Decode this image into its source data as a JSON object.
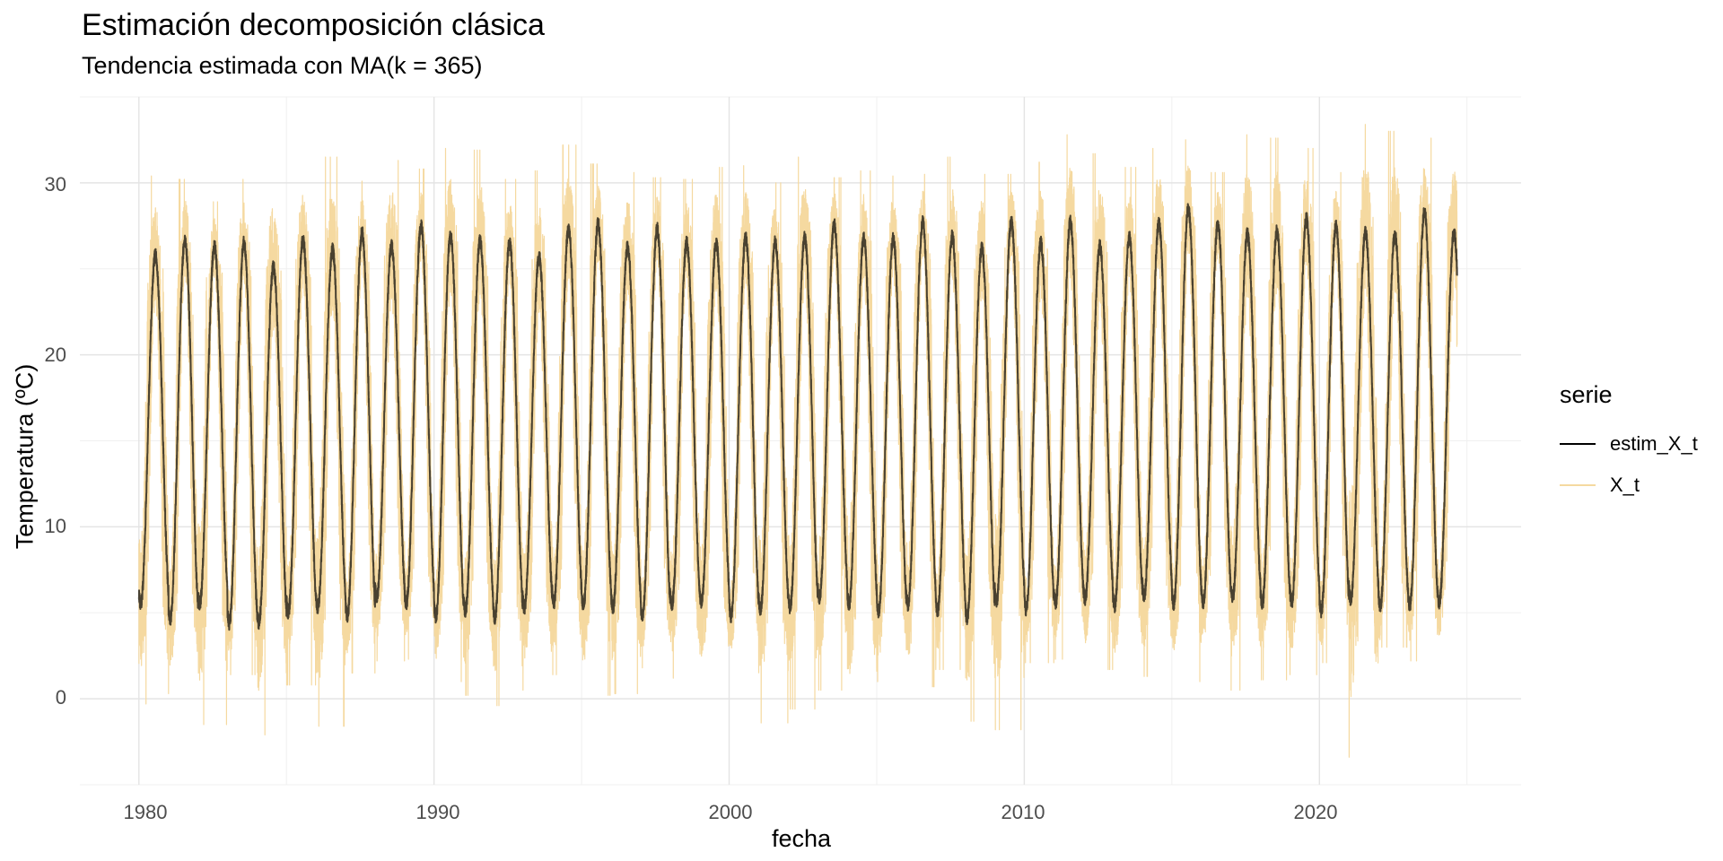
{
  "chart_data": {
    "type": "line",
    "title": "Estimación decomposición clásica",
    "subtitle": "Tendencia estimada con MA(k = 365)",
    "xlabel": "fecha",
    "ylabel": "Temperatura (ºC)",
    "xlim": [
      "1978-01-01",
      "2025-12-31"
    ],
    "ylim": [
      -5,
      35
    ],
    "x_ticks": [
      "1980",
      "1990",
      "2000",
      "2010",
      "2020"
    ],
    "y_ticks": [
      "0",
      "10",
      "20",
      "30"
    ],
    "grid": true,
    "legend_position": "right",
    "legend_title": "serie",
    "x_start": "1980-01-01",
    "x_end": "2024-08-31",
    "series": [
      {
        "name": "estim_X_t",
        "color": "#000000",
        "description": "seasonal estimate, yearly cycle",
        "annual_peaks": [
          25.8,
          26.7,
          26.3,
          26.5,
          25.1,
          26.7,
          26.1,
          27.1,
          26.3,
          27.5,
          26.9,
          26.6,
          26.5,
          25.7,
          27.3,
          27.6,
          26.3,
          27.3,
          26.5,
          26.5,
          26.8,
          26.6,
          26.8,
          27.6,
          26.8,
          26.8,
          27.7,
          26.9,
          26.2,
          27.7,
          26.5,
          27.7,
          26.3,
          26.8,
          27.6,
          28.5,
          27.6,
          27.0,
          27.2,
          27.9,
          27.5,
          27.1,
          27.0,
          28.3,
          27.1
        ],
        "annual_troughs": [
          5.5,
          4.6,
          5.5,
          4.4,
          4.4,
          5.0,
          5.3,
          4.8,
          5.9,
          5.5,
          4.8,
          5.1,
          4.7,
          5.3,
          5.6,
          5.4,
          5.3,
          4.8,
          5.5,
          5.6,
          4.8,
          5.2,
          5.3,
          5.9,
          5.5,
          5.1,
          5.5,
          5.1,
          4.7,
          5.7,
          5.2,
          5.6,
          5.8,
          5.4,
          6.0,
          5.5,
          5.6,
          5.9,
          5.5,
          5.6,
          5.1,
          5.8,
          5.4,
          5.4,
          5.6
        ]
      },
      {
        "name": "X_t",
        "color": "#F5D9A0",
        "description": "observed daily temperature",
        "annual_max": [
          30.4,
          30.2,
          28.9,
          30.2,
          30.8,
          30.7,
          31.5,
          30.1,
          31.3,
          30.8,
          32.0,
          31.9,
          30.2,
          30.7,
          32.2,
          31.1,
          30.6,
          30.3,
          30.2,
          30.9,
          31.0,
          30.0,
          31.5,
          30.3,
          30.7,
          30.4,
          30.5,
          31.5,
          30.5,
          30.5,
          31.2,
          32.8,
          31.7,
          30.9,
          32.0,
          32.5,
          30.6,
          32.8,
          32.6,
          32.0,
          30.6,
          33.4,
          33.0,
          32.6,
          32.6
        ],
        "annual_min": [
          -0.3,
          0.3,
          -1.5,
          1.4,
          -2.1,
          0.8,
          -1.6,
          1.5,
          2.2,
          2.3,
          1.0,
          0.2,
          -0.4,
          0.5,
          1.4,
          0.2,
          0.3,
          1.8,
          1.2,
          0.5,
          2.0,
          -1.4,
          -0.6,
          0.5,
          -1.2,
          1.0,
          0.7,
          1.7,
          -1.3,
          -1.8,
          2.1,
          2.3,
          1.7,
          0.9,
          1.3,
          1.0,
          2.2,
          0.5,
          1.1,
          1.4,
          2.1,
          -3.4,
          3.0,
          2.2,
          2.7
        ]
      }
    ]
  }
}
